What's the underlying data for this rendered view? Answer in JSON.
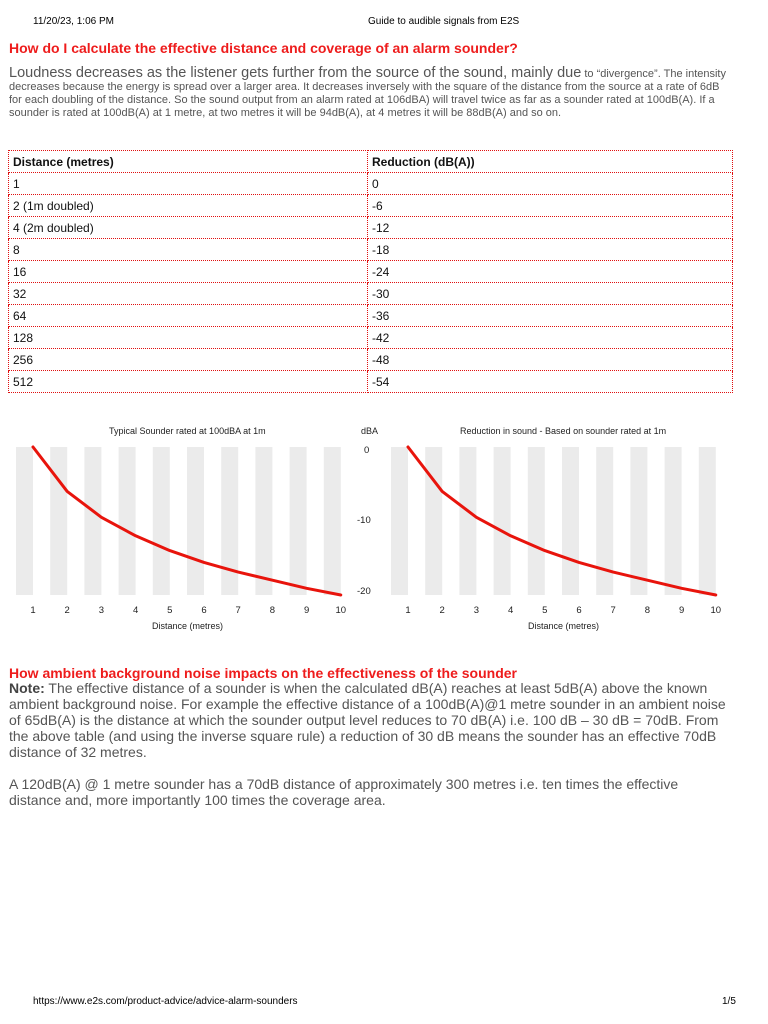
{
  "print_header": {
    "date": "11/20/23, 1:06 PM",
    "title": "Guide to audible signals from E2S"
  },
  "section1": {
    "heading": "How do I calculate the effective distance and coverage of an alarm sounder?",
    "intro_big": "Loudness decreases as the listener gets further from the source of the sound, mainly due",
    "intro_rest": " to “divergence”. The intensity decreases because the energy is spread over a larger area. It decreases inversely with the square of the distance from the source at a rate of 6dB for each doubling of the distance. So the sound output from an alarm rated at 106dBA) will travel twice as far as a sounder rated at 100dB(A). If a sounder is rated at 100dB(A) at 1 metre, at two metres it will be 94dB(A), at 4 metres it will be 88dB(A) and so on."
  },
  "table": {
    "headers": [
      "Distance (metres)",
      "Reduction (dB(A))"
    ],
    "rows": [
      [
        "1",
        "0"
      ],
      [
        "2 (1m doubled)",
        "-6"
      ],
      [
        "4 (2m doubled)",
        "-12"
      ],
      [
        "8",
        "-18"
      ],
      [
        "16",
        "-24"
      ],
      [
        "32",
        "-30"
      ],
      [
        "64",
        "-36"
      ],
      [
        "128",
        "-42"
      ],
      [
        "256",
        "-48"
      ],
      [
        "512",
        "-54"
      ]
    ],
    "border_color": "#e01010"
  },
  "chart_data": [
    {
      "type": "line",
      "title": "Typical Sounder rated at 100dBA at 1m",
      "xlabel": "Distance (metres)",
      "ylabel": "dBA",
      "x": [
        1,
        2,
        3,
        4,
        5,
        6,
        7,
        8,
        9,
        10
      ],
      "series": [
        {
          "name": "Reduction",
          "values": [
            0,
            -6,
            -9.5,
            -12,
            -14,
            -15.6,
            -16.9,
            -18,
            -19.1,
            -20
          ]
        }
      ],
      "ylim": [
        -20,
        0
      ],
      "yticks": [
        "0",
        "-10",
        "-20"
      ],
      "grid": "alternating vertical stripes",
      "line_color": "#e8140c"
    },
    {
      "type": "line",
      "title": "Reduction in sound - Based on sounder rated at 1m",
      "xlabel": "Distance (metres)",
      "ylabel": "dBA",
      "x": [
        1,
        2,
        3,
        4,
        5,
        6,
        7,
        8,
        9,
        10
      ],
      "series": [
        {
          "name": "Reduction",
          "values": [
            0,
            -6,
            -9.5,
            -12,
            -14,
            -15.6,
            -16.9,
            -18,
            -19.1,
            -20
          ]
        }
      ],
      "ylim": [
        -20,
        0
      ],
      "grid": "alternating vertical stripes",
      "line_color": "#e8140c"
    }
  ],
  "section2": {
    "heading": "How ambient background noise impacts on the effectiveness of the sounder",
    "note_label": "Note:",
    "note_text": " The effective distance of a sounder is when the calculated dB(A) reaches at least 5dB(A) above the known ambient background noise. For example the effective distance of a 100dB(A)@1 metre sounder in an ambient noise of 65dB(A) is the distance at which the sounder output level reduces to 70 dB(A) i.e. 100 dB – 30 dB = 70dB. From the above table (and using the inverse square rule) a reduction of 30 dB means the sounder has an effective 70dB distance of 32 metres.",
    "para2": "A 120dB(A) @ 1 metre sounder has a 70dB distance of approximately 300 metres i.e. ten times the effective distance and, more importantly 100 times the coverage area."
  },
  "print_footer": {
    "url": "https://www.e2s.com/product-advice/advice-alarm-sounders",
    "page": "1/5"
  },
  "colors": {
    "heading_red": "#ee1c1c",
    "stripe_grey": "#ebebeb",
    "line_red": "#e8140c"
  }
}
